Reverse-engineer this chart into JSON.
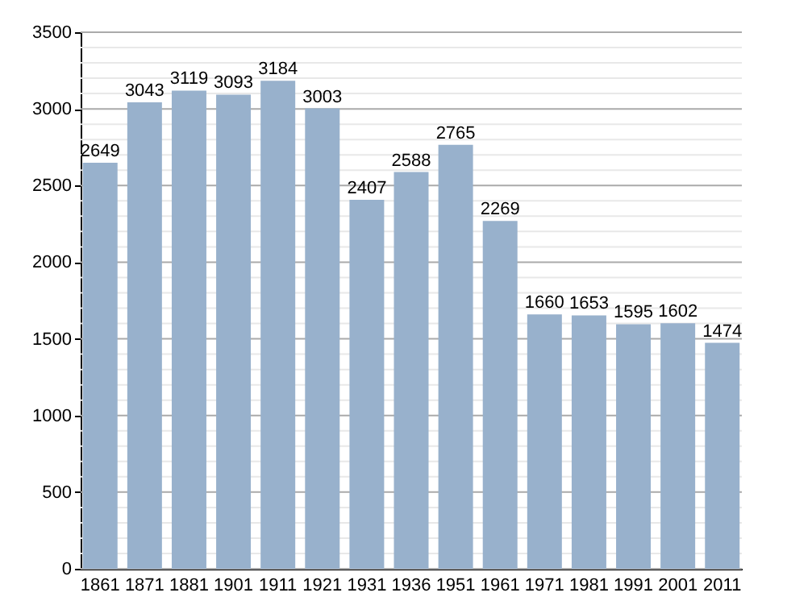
{
  "chart_data": {
    "type": "bar",
    "categories": [
      "1861",
      "1871",
      "1881",
      "1901",
      "1911",
      "1921",
      "1931",
      "1936",
      "1951",
      "1961",
      "1971",
      "1981",
      "1991",
      "2001",
      "2011"
    ],
    "values": [
      2649,
      3043,
      3119,
      3093,
      3184,
      3003,
      2407,
      2588,
      2765,
      2269,
      1660,
      1653,
      1595,
      1602,
      1474
    ],
    "color": "#98b1cc",
    "data_labels": true,
    "grid": "y",
    "ylim": [
      0,
      3500
    ],
    "yticks": [
      0,
      {
        "value": 100,
        "label": null
      },
      {
        "value": 200,
        "label": null
      },
      {
        "value": 300,
        "label": null
      },
      {
        "value": 400,
        "label": null
      },
      500,
      {
        "value": 600,
        "label": null
      },
      {
        "value": 700,
        "label": null
      },
      {
        "value": 800,
        "label": null
      },
      {
        "value": 900,
        "label": null
      },
      1000,
      {
        "value": 1100,
        "label": null
      },
      {
        "value": 1200,
        "label": null
      },
      {
        "value": 1300,
        "label": null
      },
      {
        "value": 1400,
        "label": null
      },
      1500,
      {
        "value": 1600,
        "label": null
      },
      {
        "value": 1700,
        "label": null
      },
      {
        "value": 1800,
        "label": null
      },
      {
        "value": 1900,
        "label": null
      },
      2000,
      {
        "value": 2100,
        "label": null
      },
      {
        "value": 2200,
        "label": null
      },
      {
        "value": 2300,
        "label": null
      },
      {
        "value": 2400,
        "label": null
      },
      2500,
      {
        "value": 2600,
        "label": null
      },
      {
        "value": 2700,
        "label": null
      },
      {
        "value": 2800,
        "label": null
      },
      {
        "value": 2900,
        "label": null
      },
      3000,
      {
        "value": 3100,
        "label": null
      },
      {
        "value": 3200,
        "label": null
      },
      {
        "value": 3300,
        "label": null
      },
      {
        "value": 3400,
        "label": null
      },
      3500
    ]
  }
}
